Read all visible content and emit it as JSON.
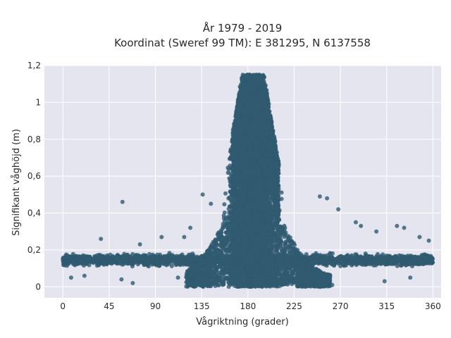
{
  "chart_data": {
    "type": "scatter",
    "title_line1": "År 1979 - 2019",
    "title_line2": "Koordinat (Sweref 99 TM): E 381295, N 6137558",
    "xlabel": "Vågriktning (grader)",
    "ylabel": "Signifikant våghöjd (m)",
    "xlim": [
      -18,
      368
    ],
    "ylim": [
      -0.06,
      1.2
    ],
    "xticks": [
      0,
      45,
      90,
      135,
      180,
      225,
      270,
      315,
      360
    ],
    "xtick_labels": [
      "0",
      "45",
      "90",
      "135",
      "180",
      "225",
      "270",
      "315",
      "360"
    ],
    "yticks": [
      0,
      0.2,
      0.4,
      0.6,
      0.8,
      1.0,
      1.2
    ],
    "ytick_labels": [
      "0",
      "0,2",
      "0,4",
      "0,6",
      "0,8",
      "1",
      "1,2"
    ],
    "grid": true,
    "colors": {
      "plot_bg": "#e5e5f0",
      "grid": "#ffffff",
      "marker": "#305a70"
    },
    "density": {
      "baseline_y_range": [
        0.05,
        0.22
      ],
      "baseline_x_range": [
        0,
        360
      ],
      "peak_x": 185,
      "peak_y_max": 1.15,
      "peak_half_width_deg": 22
    },
    "points": [
      {
        "x": 58,
        "y": 0.46
      },
      {
        "x": 136,
        "y": 0.5
      },
      {
        "x": 144,
        "y": 0.45
      },
      {
        "x": 250,
        "y": 0.49
      },
      {
        "x": 257,
        "y": 0.48
      },
      {
        "x": 268,
        "y": 0.42
      },
      {
        "x": 96,
        "y": 0.27
      },
      {
        "x": 37,
        "y": 0.26
      },
      {
        "x": 305,
        "y": 0.3
      },
      {
        "x": 325,
        "y": 0.33
      },
      {
        "x": 332,
        "y": 0.32
      },
      {
        "x": 356,
        "y": 0.25
      },
      {
        "x": 347,
        "y": 0.27
      },
      {
        "x": 285,
        "y": 0.35
      },
      {
        "x": 290,
        "y": 0.33
      },
      {
        "x": 118,
        "y": 0.27
      },
      {
        "x": 124,
        "y": 0.32
      },
      {
        "x": 75,
        "y": 0.23
      },
      {
        "x": 68,
        "y": 0.02
      },
      {
        "x": 148,
        "y": 0.02
      },
      {
        "x": 240,
        "y": 0.02
      },
      {
        "x": 262,
        "y": 0.01
      },
      {
        "x": 313,
        "y": 0.03
      },
      {
        "x": 57,
        "y": 0.04
      },
      {
        "x": 112,
        "y": 0.05
      },
      {
        "x": 8,
        "y": 0.05
      },
      {
        "x": 21,
        "y": 0.06
      },
      {
        "x": 338,
        "y": 0.05
      }
    ]
  }
}
